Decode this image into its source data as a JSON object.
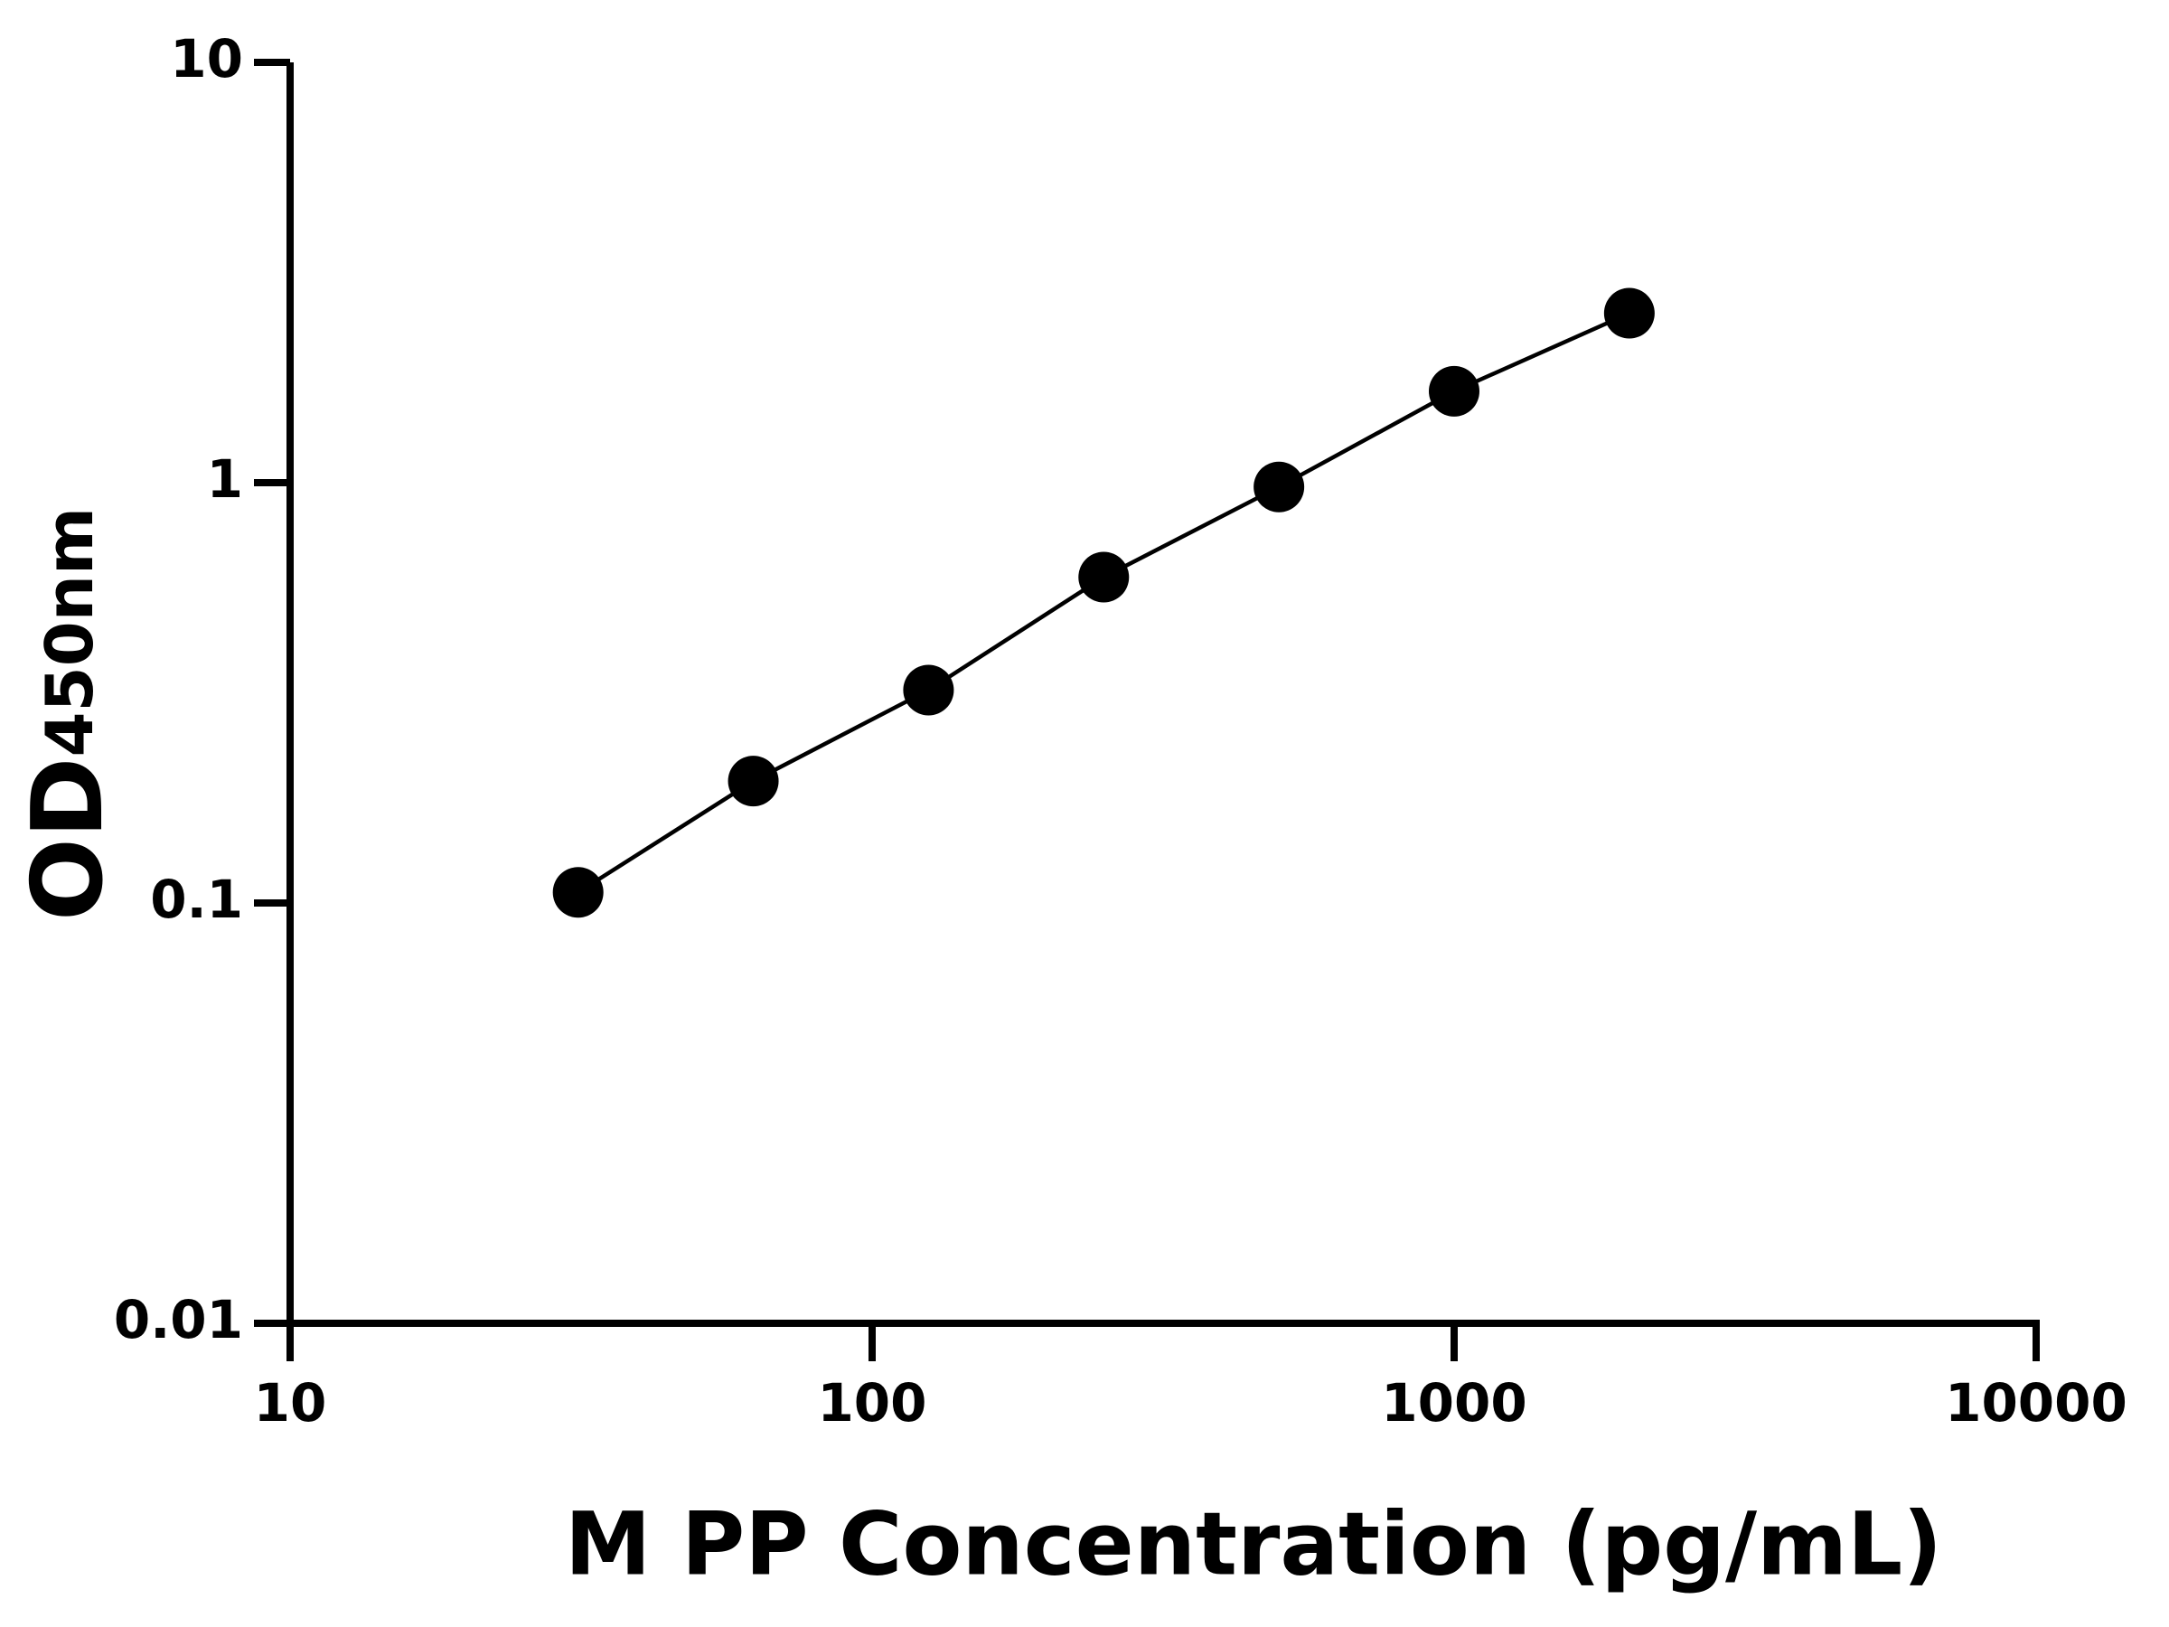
{
  "chart_data": {
    "type": "scatter",
    "x_label": "M PP Concentration (pg/mL)",
    "y_label": "OD",
    "y_label_subscript": "450nm",
    "x_log": true,
    "y_log": true,
    "xlim": [
      10,
      10000
    ],
    "ylim": [
      0.01,
      10
    ],
    "xticks": [
      10,
      100,
      1000,
      10000
    ],
    "yticks": [
      0.01,
      0.1,
      1,
      10
    ],
    "color": "#000000",
    "series": [
      {
        "x": [
          31.25,
          62.5,
          125,
          250,
          500,
          1000,
          2000
        ],
        "values": [
          0.106,
          0.195,
          0.321,
          0.596,
          0.977,
          1.65,
          2.53
        ]
      }
    ]
  }
}
